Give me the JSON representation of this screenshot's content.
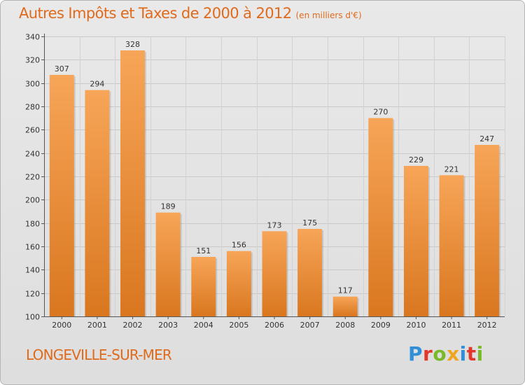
{
  "header": {
    "title": "Autres Impôts et Taxes de 2000 à 2012",
    "unit_note": "(en milliers d'€)"
  },
  "footer": {
    "town": "LONGEVILLE-SUR-MER",
    "logo_text": "Proxiti"
  },
  "colors": {
    "accent": "#e06a1c",
    "bar_top": "#f7a558",
    "bar_bottom": "#d9771f"
  },
  "chart_data": {
    "type": "bar",
    "categories": [
      "2000",
      "2001",
      "2002",
      "2003",
      "2004",
      "2005",
      "2006",
      "2007",
      "2008",
      "2009",
      "2010",
      "2011",
      "2012"
    ],
    "values": [
      307,
      294,
      328,
      189,
      151,
      156,
      173,
      175,
      117,
      270,
      229,
      221,
      247
    ],
    "title": "Autres Impôts et Taxes de 2000 à 2012",
    "ylim": [
      100,
      340
    ],
    "yticks": [
      100,
      120,
      140,
      160,
      180,
      200,
      220,
      240,
      260,
      280,
      300,
      320,
      340
    ],
    "grid": true,
    "data_labels": true
  }
}
